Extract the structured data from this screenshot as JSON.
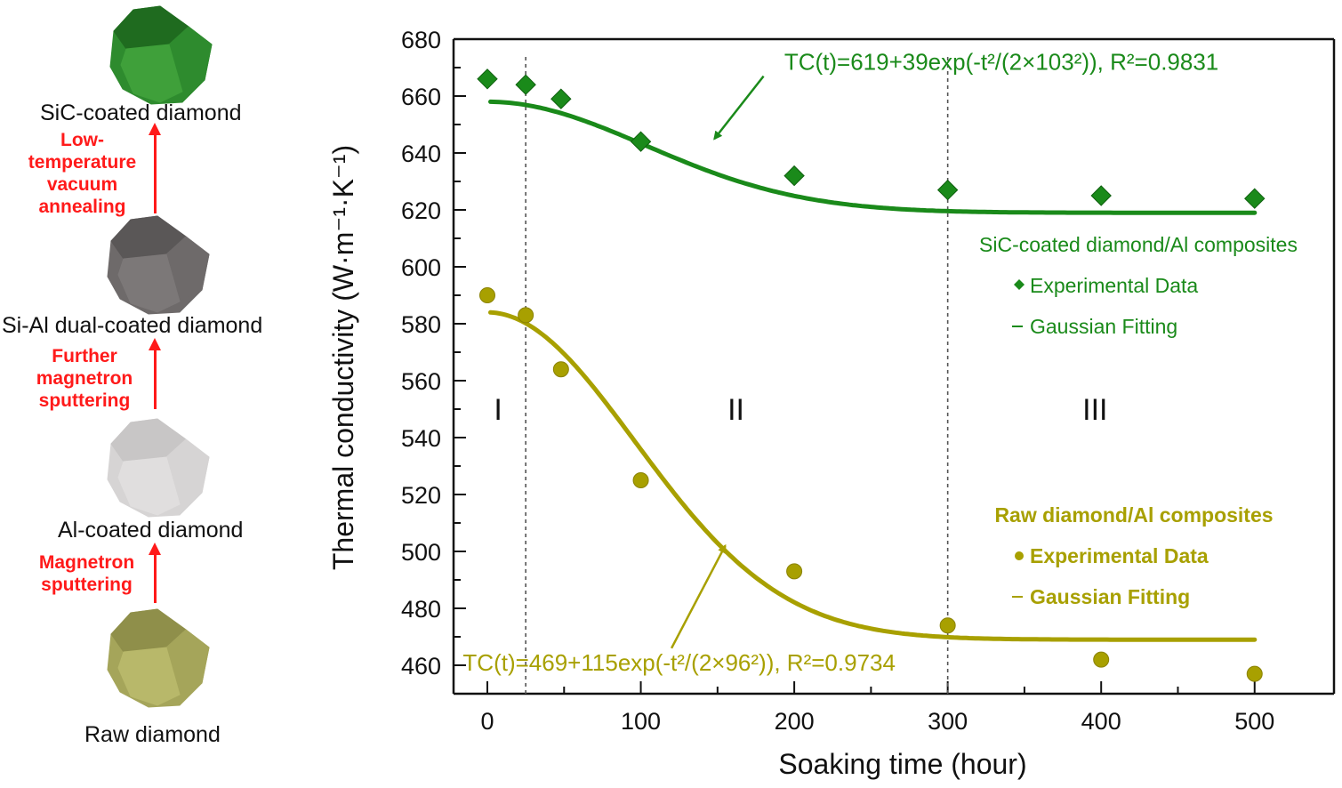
{
  "left_panel": {
    "stages": [
      {
        "label": "SiC-coated diamond",
        "color": "#2e8b2e",
        "shade": "#1f6b1f",
        "light": "#3fa03a"
      },
      {
        "label": "Si-Al dual-coated diamond",
        "color": "#6e6a6a",
        "shade": "#5a5757",
        "light": "#7c7878"
      },
      {
        "label": "Al-coated diamond",
        "color": "#d6d4d4",
        "shade": "#c8c6c6",
        "light": "#e0dede"
      },
      {
        "label": "Raw diamond",
        "color": "#a5a55a",
        "shade": "#8f8f4a",
        "light": "#b8b86a"
      }
    ],
    "processes": [
      {
        "label": "Low-\ntemperature\nvacuum\nannealing"
      },
      {
        "label": "Further\nmagnetron\nsputtering"
      },
      {
        "label": "Magnetron\nsputtering"
      }
    ],
    "process_color": "#ff1a1a"
  },
  "chart_data": {
    "type": "scatter",
    "title": "",
    "xlabel": "Soaking  time (hour)",
    "ylabel": "Thermal conductivity (W·m⁻¹·K⁻¹)",
    "xlim": [
      -15,
      550
    ],
    "ylim": [
      450,
      680
    ],
    "xticks": [
      0,
      100,
      200,
      300,
      400,
      500
    ],
    "xminor": [
      50,
      150,
      250,
      350,
      450
    ],
    "yticks": [
      460,
      480,
      500,
      520,
      540,
      560,
      580,
      600,
      620,
      640,
      660,
      680
    ],
    "yminor": [
      470,
      490,
      510,
      530,
      550,
      570,
      590,
      610,
      630,
      650,
      670
    ],
    "grid": false,
    "region_dividers_x": [
      25,
      300
    ],
    "regions": [
      {
        "label": "I",
        "x": 7,
        "y": 550
      },
      {
        "label": "II",
        "x": 162,
        "y": 550
      },
      {
        "label": "III",
        "x": 396,
        "y": 550
      }
    ],
    "series": [
      {
        "name": "SiC-coated diamond/Al composites",
        "marker": "diamond",
        "color": "#1a8a1a",
        "x": [
          0,
          25,
          48,
          100,
          200,
          300,
          400,
          500
        ],
        "y": [
          666,
          664,
          659,
          644,
          632,
          627,
          625,
          624
        ],
        "fit": {
          "a": 619,
          "b": 39,
          "sigma": 103,
          "x_from": 2,
          "x_to": 500
        },
        "equation": "TC(t)=619+39exp(-t²/(2×103²)), R²=0.9831",
        "legend": {
          "title": "SiC-coated diamond/Al composites",
          "data": "Experimental Data",
          "fit": "Gaussian Fitting",
          "position": "right-middle"
        }
      },
      {
        "name": "Raw diamond/Al composites",
        "marker": "circle",
        "color": "#a8a000",
        "x": [
          0,
          25,
          48,
          100,
          200,
          300,
          400,
          500
        ],
        "y": [
          590,
          583,
          564,
          525,
          493,
          474,
          462,
          457
        ],
        "fit": {
          "a": 469,
          "b": 115,
          "sigma": 96,
          "x_from": 2,
          "x_to": 500
        },
        "equation": "TC(t)=469+115exp(-t²/(2×96²)), R²=0.9734",
        "legend": {
          "title": "Raw diamond/Al composites",
          "data": "Experimental Data",
          "fit": "Gaussian Fitting",
          "position": "bottom-right"
        }
      }
    ],
    "annotations": [
      {
        "series": 0,
        "text_x": 335,
        "text_y": 672,
        "arrow_from": [
          180,
          667
        ],
        "arrow_to": [
          148,
          645
        ]
      },
      {
        "series": 1,
        "text_x": 125,
        "text_y": 461,
        "arrow_from": [
          120,
          466
        ],
        "arrow_to": [
          155,
          502
        ]
      }
    ]
  }
}
